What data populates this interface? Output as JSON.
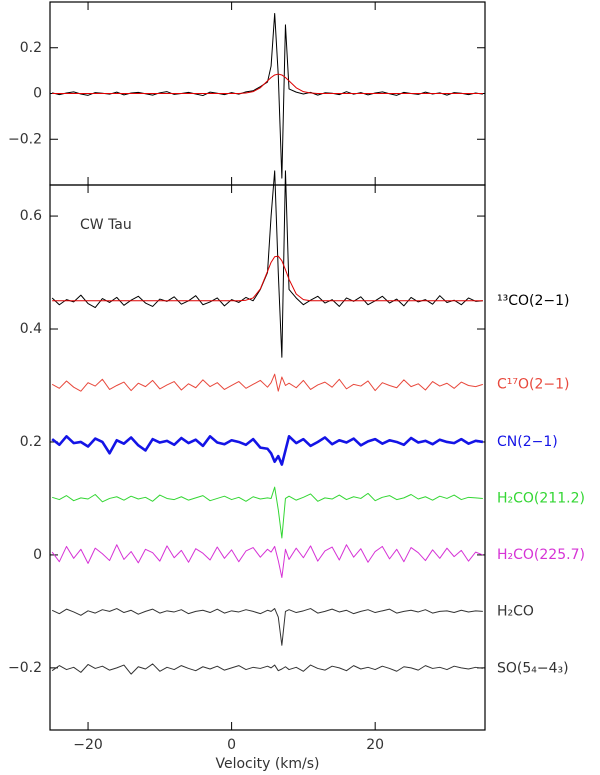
{
  "chart_data": [
    {
      "type": "line",
      "x": [
        -25,
        -24,
        -23,
        -22,
        -21,
        -20,
        -19,
        -18,
        -17,
        -16,
        -15,
        -14,
        -13,
        -12,
        -11,
        -10,
        -9,
        -8,
        -7,
        -6,
        -5,
        -4,
        -3,
        -2,
        -1,
        0,
        1,
        2,
        3,
        4,
        5,
        5.5,
        6,
        6.5,
        7,
        7.5,
        8,
        9,
        10,
        11,
        12,
        13,
        14,
        15,
        16,
        17,
        18,
        19,
        20,
        21,
        22,
        23,
        24,
        25,
        26,
        27,
        28,
        29,
        30,
        31,
        32,
        33,
        34,
        35
      ],
      "xlim": [
        -25.3,
        35.3
      ],
      "xticks": [
        -20,
        0,
        20
      ],
      "ylim": [
        -0.4,
        0.4
      ],
      "yticks": [
        {
          "value": -0.2,
          "label": "−0.2"
        },
        0,
        0.2
      ],
      "series": [
        {
          "color": "#000000",
          "values": [
            0.003,
            -0.005,
            0.002,
            0.007,
            -0.002,
            -0.008,
            0.004,
            0.001,
            -0.003,
            0.006,
            -0.006,
            0.002,
            0.005,
            -0.001,
            -0.007,
            0.003,
            0.008,
            -0.004,
            0,
            0.005,
            -0.002,
            -0.009,
            0.006,
            0.001,
            -0.005,
            0.004,
            -0.003,
            0.007,
            0.012,
            0.03,
            0.05,
            0.12,
            0.35,
            0.08,
            -0.37,
            0.3,
            0.02,
            0.006,
            -0.002,
            0.005,
            -0.007,
            0.003,
            0.001,
            -0.005,
            0.008,
            -0.003,
            0.004,
            -0.006,
            0.002,
            0.007,
            -0.001,
            -0.008,
            0.005,
            0,
            -0.004,
            0.006,
            -0.002,
            0.003,
            -0.007,
            0.004,
            0.001,
            -0.005,
            0.002,
            -0.003
          ]
        },
        {
          "color": "#dd0000",
          "values": [
            0,
            0,
            0,
            0,
            0,
            0,
            0,
            0,
            0,
            0,
            0,
            0,
            0,
            0,
            0,
            0,
            0,
            0,
            0,
            0,
            0,
            0,
            0,
            0,
            0,
            0,
            0,
            0.002,
            0.008,
            0.025,
            0.055,
            0.07,
            0.081,
            0.085,
            0.081,
            0.07,
            0.055,
            0.025,
            0.008,
            0.002,
            0,
            0,
            0,
            0,
            0,
            0,
            0,
            0,
            0,
            0,
            0,
            0,
            0,
            0,
            0,
            0,
            0,
            0,
            0,
            0,
            0,
            0,
            0,
            0
          ]
        }
      ]
    },
    {
      "type": "line",
      "annotation": "CW Tau",
      "x_label": "Velocity (km/s)",
      "x": [
        -25,
        -24,
        -23,
        -22,
        -21,
        -20,
        -19,
        -18,
        -17,
        -16,
        -15,
        -14,
        -13,
        -12,
        -11,
        -10,
        -9,
        -8,
        -7,
        -6,
        -5,
        -4,
        -3,
        -2,
        -1,
        0,
        1,
        2,
        3,
        4,
        5,
        5.5,
        6,
        6.5,
        7,
        7.5,
        8,
        9,
        10,
        11,
        12,
        13,
        14,
        15,
        16,
        17,
        18,
        19,
        20,
        21,
        22,
        23,
        24,
        25,
        26,
        27,
        28,
        29,
        30,
        31,
        32,
        33,
        34,
        35
      ],
      "xlim": [
        -25.3,
        35.3
      ],
      "xticks": [
        {
          "value": -20,
          "label": "−20"
        },
        0,
        20
      ],
      "ylim": [
        -0.31,
        0.655
      ],
      "yticks": [
        {
          "value": -0.2,
          "label": "−0.2"
        },
        0,
        0.2,
        0.4,
        0.6
      ],
      "series": [
        {
          "name": "¹³CO(2−1)",
          "color": "#000000",
          "values": [
            0.455,
            0.443,
            0.452,
            0.448,
            0.46,
            0.445,
            0.438,
            0.454,
            0.447,
            0.456,
            0.442,
            0.451,
            0.458,
            0.446,
            0.44,
            0.453,
            0.449,
            0.457,
            0.444,
            0.45,
            0.459,
            0.443,
            0.448,
            0.455,
            0.441,
            0.452,
            0.447,
            0.456,
            0.45,
            0.47,
            0.5,
            0.6,
            0.68,
            0.5,
            0.35,
            0.68,
            0.47,
            0.455,
            0.443,
            0.451,
            0.458,
            0.446,
            0.452,
            0.44,
            0.455,
            0.449,
            0.457,
            0.443,
            0.45,
            0.458,
            0.446,
            0.453,
            0.441,
            0.456,
            0.448,
            0.452,
            0.444,
            0.459,
            0.447,
            0.451,
            0.443,
            0.455,
            0.449,
            0.45
          ]
        },
        {
          "color": "#dd0000",
          "values": [
            0.45,
            0.45,
            0.45,
            0.45,
            0.45,
            0.45,
            0.45,
            0.45,
            0.45,
            0.45,
            0.45,
            0.45,
            0.45,
            0.45,
            0.45,
            0.45,
            0.45,
            0.45,
            0.45,
            0.45,
            0.45,
            0.45,
            0.45,
            0.45,
            0.45,
            0.45,
            0.45,
            0.451,
            0.455,
            0.471,
            0.502,
            0.518,
            0.528,
            0.529,
            0.521,
            0.505,
            0.488,
            0.462,
            0.452,
            0.45,
            0.45,
            0.45,
            0.45,
            0.45,
            0.45,
            0.45,
            0.45,
            0.45,
            0.45,
            0.45,
            0.45,
            0.45,
            0.45,
            0.45,
            0.45,
            0.45,
            0.45,
            0.45,
            0.45,
            0.45,
            0.45,
            0.45,
            0.45,
            0.45
          ]
        },
        {
          "name": "C¹⁷O(2−1)",
          "color": "#e8483c",
          "values": [
            0.302,
            0.295,
            0.308,
            0.297,
            0.29,
            0.305,
            0.299,
            0.311,
            0.293,
            0.3,
            0.306,
            0.291,
            0.304,
            0.298,
            0.309,
            0.294,
            0.301,
            0.307,
            0.292,
            0.303,
            0.296,
            0.31,
            0.298,
            0.305,
            0.293,
            0.3,
            0.307,
            0.295,
            0.302,
            0.309,
            0.297,
            0.305,
            0.32,
            0.29,
            0.315,
            0.3,
            0.304,
            0.296,
            0.309,
            0.293,
            0.301,
            0.306,
            0.297,
            0.311,
            0.294,
            0.302,
            0.299,
            0.308,
            0.291,
            0.305,
            0.3,
            0.296,
            0.31,
            0.298,
            0.303,
            0.292,
            0.307,
            0.299,
            0.304,
            0.295,
            0.306,
            0.3,
            0.298,
            0.302
          ]
        },
        {
          "name": "CN(2−1)",
          "color": "#1414e6",
          "values": [
            0.205,
            0.195,
            0.21,
            0.198,
            0.2,
            0.192,
            0.206,
            0.2,
            0.18,
            0.203,
            0.197,
            0.208,
            0.194,
            0.185,
            0.205,
            0.199,
            0.202,
            0.195,
            0.207,
            0.198,
            0.204,
            0.193,
            0.21,
            0.199,
            0.196,
            0.203,
            0.2,
            0.195,
            0.205,
            0.19,
            0.188,
            0.18,
            0.165,
            0.175,
            0.16,
            0.185,
            0.21,
            0.198,
            0.205,
            0.193,
            0.2,
            0.208,
            0.196,
            0.203,
            0.199,
            0.206,
            0.194,
            0.201,
            0.205,
            0.197,
            0.203,
            0.2,
            0.195,
            0.207,
            0.199,
            0.202,
            0.196,
            0.204,
            0.2,
            0.198,
            0.205,
            0.197,
            0.202,
            0.2
          ]
        },
        {
          "name": "H₂CO(211.2)",
          "color": "#33d633",
          "values": [
            0.102,
            0.098,
            0.105,
            0.096,
            0.101,
            0.099,
            0.107,
            0.094,
            0.1,
            0.103,
            0.097,
            0.104,
            0.099,
            0.102,
            0.095,
            0.106,
            0.1,
            0.098,
            0.103,
            0.097,
            0.101,
            0.105,
            0.096,
            0.1,
            0.104,
            0.098,
            0.102,
            0.095,
            0.103,
            0.099,
            0.101,
            0.1,
            0.12,
            0.08,
            0.03,
            0.1,
            0.104,
            0.097,
            0.102,
            0.108,
            0.095,
            0.101,
            0.099,
            0.106,
            0.098,
            0.103,
            0.1,
            0.109,
            0.096,
            0.102,
            0.105,
            0.098,
            0.101,
            0.107,
            0.099,
            0.103,
            0.097,
            0.104,
            0.1,
            0.106,
            0.098,
            0.102,
            0.101,
            0.1
          ]
        },
        {
          "name": "H₂CO(225.7)",
          "color": "#d633d6",
          "values": [
            0.005,
            -0.012,
            0.015,
            -0.006,
            0.01,
            -0.015,
            0.012,
            0.002,
            -0.01,
            0.018,
            -0.008,
            0.006,
            -0.014,
            0.01,
            0.004,
            -0.011,
            0.016,
            -0.005,
            0.008,
            -0.013,
            0.011,
            0.003,
            -0.009,
            0.014,
            -0.006,
            0.009,
            -0.012,
            0.007,
            0.013,
            -0.004,
            0.01,
            0.005,
            0.015,
            -0.01,
            -0.04,
            0.01,
            -0.008,
            0.012,
            -0.005,
            0.016,
            -0.011,
            0.007,
            0.014,
            -0.009,
            0.018,
            -0.004,
            0.011,
            -0.013,
            0.006,
            0.015,
            -0.007,
            0.01,
            -0.012,
            0.013,
            0.004,
            -0.01,
            0.009,
            -0.006,
            0.012,
            -0.003,
            0.008,
            -0.011,
            0.005,
            0
          ]
        },
        {
          "name": "H₂CO",
          "color": "#333333",
          "values": [
            -0.098,
            -0.104,
            -0.096,
            -0.101,
            -0.107,
            -0.099,
            -0.103,
            -0.097,
            -0.1,
            -0.095,
            -0.102,
            -0.098,
            -0.105,
            -0.1,
            -0.096,
            -0.103,
            -0.099,
            -0.101,
            -0.097,
            -0.104,
            -0.1,
            -0.098,
            -0.102,
            -0.096,
            -0.103,
            -0.099,
            -0.101,
            -0.097,
            -0.1,
            -0.104,
            -0.098,
            -0.1,
            -0.095,
            -0.11,
            -0.16,
            -0.1,
            -0.097,
            -0.102,
            -0.099,
            -0.095,
            -0.103,
            -0.1,
            -0.096,
            -0.101,
            -0.098,
            -0.104,
            -0.1,
            -0.097,
            -0.102,
            -0.099,
            -0.096,
            -0.103,
            -0.1,
            -0.098,
            -0.101,
            -0.097,
            -0.103,
            -0.1,
            -0.099,
            -0.102,
            -0.098,
            -0.101,
            -0.099,
            -0.1
          ]
        },
        {
          "name": "SO(5₄−4₃)",
          "color": "#333333",
          "values": [
            -0.205,
            -0.196,
            -0.203,
            -0.199,
            -0.208,
            -0.194,
            -0.201,
            -0.197,
            -0.204,
            -0.2,
            -0.195,
            -0.211,
            -0.198,
            -0.202,
            -0.193,
            -0.206,
            -0.199,
            -0.203,
            -0.196,
            -0.201,
            -0.205,
            -0.198,
            -0.202,
            -0.197,
            -0.204,
            -0.2,
            -0.196,
            -0.203,
            -0.199,
            -0.201,
            -0.197,
            -0.2,
            -0.195,
            -0.205,
            -0.202,
            -0.198,
            -0.203,
            -0.199,
            -0.206,
            -0.195,
            -0.201,
            -0.204,
            -0.197,
            -0.2,
            -0.205,
            -0.196,
            -0.202,
            -0.199,
            -0.203,
            -0.197,
            -0.201,
            -0.206,
            -0.198,
            -0.2,
            -0.204,
            -0.196,
            -0.201,
            -0.199,
            -0.203,
            -0.197,
            -0.2,
            -0.202,
            -0.199,
            -0.201
          ]
        }
      ]
    }
  ]
}
